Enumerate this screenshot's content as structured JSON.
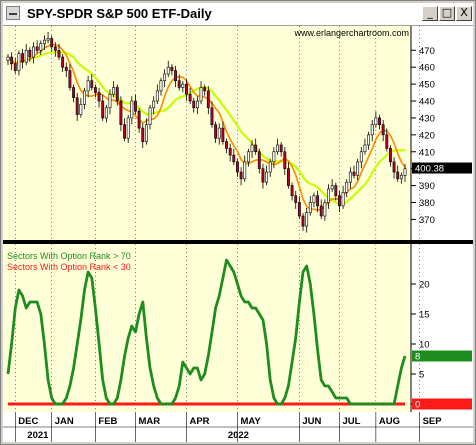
{
  "window": {
    "title": "SPY-SPDR S&P 500 ETF-Daily",
    "buttons": {
      "minimize": "_",
      "maximize": "□",
      "close": "X"
    }
  },
  "watermark": "www.erlangerchartroom.com",
  "chart_data": [
    {
      "type": "candlestick",
      "title": "SPY-SPDR S&P 500 ETF-Daily",
      "y_ticks": [
        370,
        380,
        390,
        400,
        410,
        420,
        430,
        440,
        450,
        460,
        470
      ],
      "ylim": [
        359,
        482
      ],
      "last_price_label": "400.38",
      "colors": {
        "up": "#ffffff",
        "down": "#b8002a",
        "ma_fast": "#ff8a00",
        "ma_slow": "#c6ff00",
        "background": "#ffffd8"
      },
      "closes": [
        466,
        462,
        458,
        468,
        463,
        470,
        466,
        472,
        470,
        474,
        476,
        477,
        472,
        470,
        466,
        460,
        458,
        448,
        442,
        432,
        438,
        446,
        452,
        448,
        445,
        440,
        430,
        436,
        444,
        448,
        440,
        426,
        418,
        430,
        440,
        434,
        424,
        416,
        426,
        436,
        440,
        446,
        452,
        456,
        460,
        458,
        452,
        448,
        450,
        444,
        440,
        436,
        440,
        448,
        446,
        436,
        426,
        418,
        424,
        416,
        412,
        408,
        404,
        398,
        394,
        404,
        410,
        414,
        410,
        400,
        392,
        398,
        404,
        410,
        414,
        410,
        400,
        390,
        384,
        380,
        372,
        366,
        374,
        380,
        384,
        378,
        372,
        380,
        388,
        390,
        384,
        378,
        386,
        392,
        398,
        396,
        404,
        410,
        414,
        420,
        426,
        430,
        426,
        420,
        412,
        404,
        398,
        394,
        396,
        400
      ]
    },
    {
      "type": "line",
      "series": [
        {
          "name": "Sectors With Option Rank > 70",
          "color": "#1e8c1e",
          "values": [
            5,
            10,
            16,
            19,
            18,
            16,
            17,
            17,
            17,
            15,
            10,
            4,
            1,
            0,
            0,
            0,
            1,
            3,
            6,
            10,
            14,
            19,
            22,
            21,
            16,
            10,
            4,
            1,
            0,
            0,
            1,
            4,
            8,
            11,
            13,
            12,
            15,
            17,
            11,
            6,
            3,
            1,
            0,
            0,
            0,
            0,
            1,
            3,
            7,
            6,
            5,
            6,
            6,
            4,
            5,
            8,
            12,
            16,
            18,
            21,
            24,
            23,
            22,
            20,
            18,
            17,
            17,
            16,
            16,
            15,
            14,
            10,
            4,
            1,
            0,
            0,
            1,
            3,
            7,
            11,
            17,
            22,
            23,
            20,
            15,
            9,
            4,
            3,
            3,
            2,
            1,
            1,
            1,
            1,
            0,
            0,
            0,
            0,
            0,
            0,
            0,
            0,
            0,
            0,
            0,
            0,
            0,
            3,
            6,
            8
          ]
        },
        {
          "name": "Sectors With Option Rank < 30",
          "color": "#ff1a1a",
          "values": [
            0,
            0,
            0,
            0,
            0,
            0,
            0,
            0,
            0,
            0,
            0,
            0,
            0,
            0,
            0,
            0,
            0,
            0,
            0,
            0,
            0,
            0,
            0,
            0,
            0,
            0,
            0,
            0,
            0,
            0,
            0,
            0,
            0,
            0,
            0,
            0,
            0,
            0,
            0,
            0,
            0,
            0,
            0,
            0,
            0,
            0,
            0,
            0,
            0,
            0,
            0,
            0,
            0,
            0,
            0,
            0,
            0,
            0,
            0,
            0,
            0,
            0,
            0,
            0,
            0,
            0,
            0,
            0,
            0,
            0,
            0,
            0,
            0,
            0,
            0,
            0,
            0,
            0,
            0,
            0,
            0,
            0,
            0,
            0,
            0,
            0,
            0,
            0,
            0,
            0,
            0,
            0,
            0,
            0,
            0,
            0,
            0,
            0,
            0,
            0,
            0,
            0,
            0,
            0,
            0,
            0,
            0,
            0,
            0,
            0
          ]
        }
      ],
      "y_ticks": [
        0,
        5,
        10,
        15,
        20
      ],
      "ylim": [
        -1,
        26
      ],
      "last_value_labels": [
        {
          "text": "8",
          "value": 8,
          "color": "#1e8c1e"
        },
        {
          "text": "0",
          "value": 0,
          "color": "#ff1a1a"
        }
      ],
      "background": "#ffffd8"
    }
  ],
  "x_axis": {
    "months": [
      "DEC",
      "JAN",
      "FEB",
      "MAR",
      "APR",
      "MAY",
      "JUN",
      "JUL",
      "AUG",
      "SEP"
    ],
    "month_starts": [
      2,
      12,
      24,
      35,
      49,
      63,
      80,
      91,
      101,
      113
    ],
    "years": [
      "2021",
      "2022"
    ],
    "year_starts": [
      2,
      12
    ]
  }
}
